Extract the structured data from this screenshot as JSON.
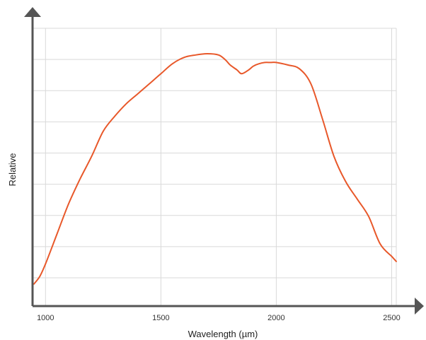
{
  "chart_data": {
    "type": "line",
    "title": "",
    "xlabel": "Wavelength (µm)",
    "ylabel": "Relative",
    "xlim": [
      950,
      2520
    ],
    "ylim": [
      0,
      1
    ],
    "x_ticks": [
      1000,
      1500,
      2000,
      2500
    ],
    "x_tick_labels": [
      "1000",
      "1500",
      "2000",
      "2500"
    ],
    "y_tick_labels": [],
    "grid": true,
    "legend": "none",
    "colors": {
      "series": "#e8582a",
      "axis": "#555555",
      "grid": "#d9d9d9"
    },
    "series": [
      {
        "x": [
          950,
          975,
          1000,
          1050,
          1100,
          1150,
          1200,
          1250,
          1300,
          1350,
          1400,
          1450,
          1500,
          1550,
          1600,
          1650,
          1700,
          1750,
          1780,
          1800,
          1830,
          1850,
          1880,
          1900,
          1925,
          1950,
          1975,
          2000,
          2050,
          2100,
          2150,
          2200,
          2250,
          2300,
          2350,
          2400,
          2450,
          2500,
          2520
        ],
        "y": [
          0.08,
          0.11,
          0.16,
          0.28,
          0.4,
          0.5,
          0.59,
          0.69,
          0.75,
          0.8,
          0.84,
          0.88,
          0.92,
          0.96,
          0.985,
          0.995,
          1.0,
          0.995,
          0.975,
          0.955,
          0.935,
          0.92,
          0.935,
          0.95,
          0.96,
          0.965,
          0.965,
          0.965,
          0.955,
          0.94,
          0.88,
          0.74,
          0.59,
          0.49,
          0.42,
          0.35,
          0.24,
          0.19,
          0.17
        ]
      }
    ]
  }
}
